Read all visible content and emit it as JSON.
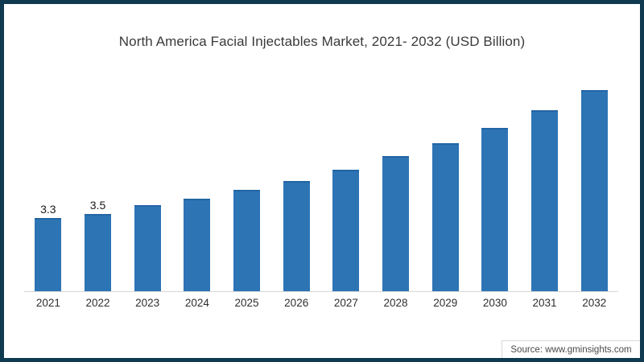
{
  "frame": {
    "border_color": "#0f3a50",
    "background_color": "#ffffff"
  },
  "chart_data": {
    "type": "bar",
    "title": "North America Facial Injectables Market, 2021- 2032 (USD Billion)",
    "categories": [
      "2021",
      "2022",
      "2023",
      "2024",
      "2025",
      "2026",
      "2027",
      "2028",
      "2029",
      "2030",
      "2031",
      "2032"
    ],
    "values": [
      3.3,
      3.5,
      3.9,
      4.2,
      4.6,
      5.0,
      5.5,
      6.1,
      6.7,
      7.4,
      8.2,
      9.1
    ],
    "data_labels": [
      "3.3",
      "3.5",
      "",
      "",
      "",
      "",
      "",
      "",
      "",
      "",
      "",
      ""
    ],
    "xlabel": "",
    "ylabel": "",
    "ylim": [
      0,
      10
    ],
    "grid": false,
    "legend": false,
    "bar_color": "#2d74b5",
    "bar_edge_color": "#2265a3",
    "axis_line_color": "#d6d6d6"
  },
  "footer": {
    "source_label": "Source: www.gminsights.com"
  }
}
